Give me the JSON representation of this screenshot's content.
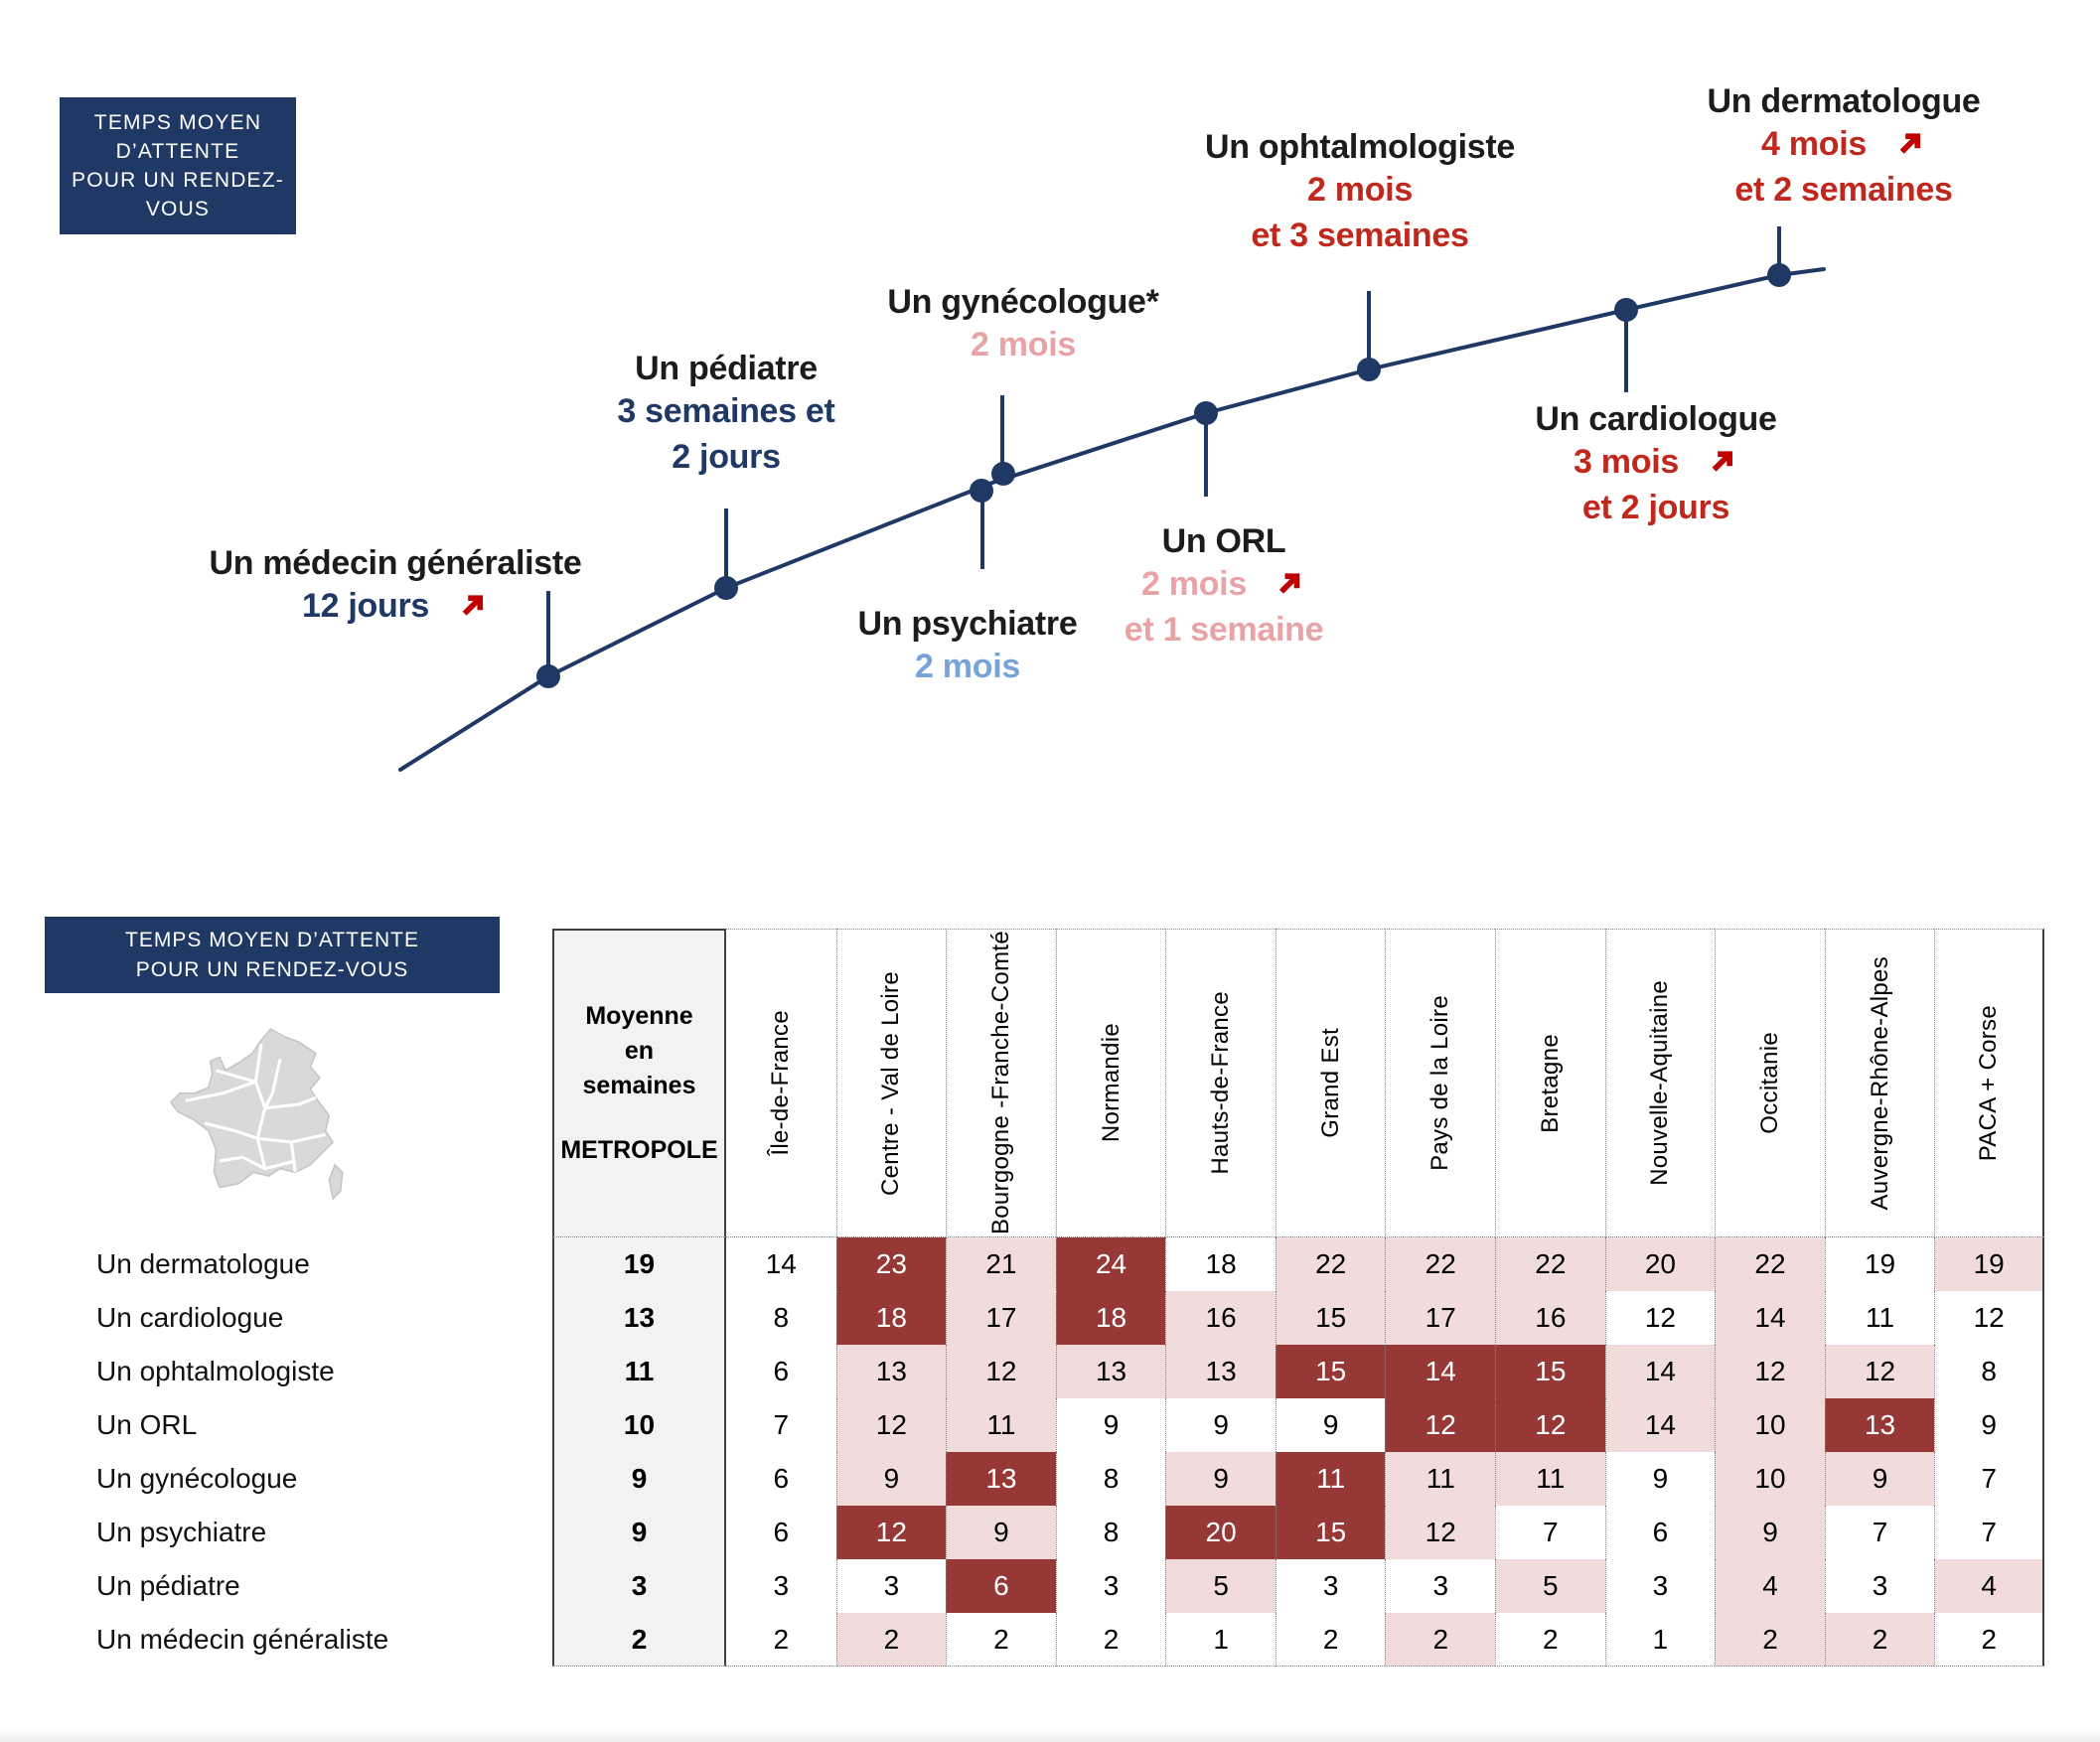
{
  "colors": {
    "navy": "#1f3864",
    "red_text": "#c0281e",
    "arrow_red": "#c00000",
    "pink_text": "#e8a3a6",
    "lightblue_text": "#76a3d8",
    "dark_cell": "#963836",
    "pink_cell": "#f2dcdb",
    "metropole_grey": "#f2f2f2",
    "map_grey": "#d9d9d9"
  },
  "chart_title_box": {
    "lines": [
      "TEMPS MOYEN",
      "D’ATTENTE",
      "POUR UN RENDEZ-",
      "VOUS"
    ]
  },
  "chart_data": [
    {
      "type": "line",
      "title": "TEMPS MOYEN D’ATTENTE POUR UN RENDEZ-VOUS",
      "legend_position": "none",
      "grid": false,
      "points": [
        {
          "label": "Un médecin généraliste",
          "value_lines": [
            "12 jours"
          ],
          "value_color_key": "navy",
          "trend_arrow": true,
          "arrow_after_line": 0,
          "weeks_metropole": 2
        },
        {
          "label": "Un pédiatre",
          "value_lines": [
            "3 semaines et",
            "2 jours"
          ],
          "value_color_key": "navy",
          "trend_arrow": false,
          "weeks_metropole": 3
        },
        {
          "label": "Un psychiatre",
          "value_lines": [
            "2 mois"
          ],
          "value_color_key": "lightblue",
          "trend_arrow": false,
          "weeks_metropole": 9
        },
        {
          "label": "Un gynécologue*",
          "value_lines": [
            "2 mois"
          ],
          "value_color_key": "pink",
          "trend_arrow": false,
          "weeks_metropole": 9
        },
        {
          "label": "Un ORL",
          "value_lines": [
            "2 mois",
            "et 1 semaine"
          ],
          "value_color_key": "pink",
          "trend_arrow": true,
          "arrow_after_line": 0,
          "weeks_metropole": 10
        },
        {
          "label": "Un ophtalmologiste",
          "value_lines": [
            "2 mois",
            "et 3 semaines"
          ],
          "value_color_key": "red",
          "trend_arrow": false,
          "weeks_metropole": 11
        },
        {
          "label": "Un cardiologue",
          "value_lines": [
            "3 mois",
            "et 2 jours"
          ],
          "value_color_key": "red",
          "trend_arrow": true,
          "arrow_after_line": 0,
          "weeks_metropole": 13
        },
        {
          "label": "Un dermatologue",
          "value_lines": [
            "4 mois",
            "et 2 semaines"
          ],
          "value_color_key": "red",
          "trend_arrow": true,
          "arrow_after_line": 0,
          "weeks_metropole": 19
        }
      ]
    },
    {
      "type": "table",
      "title_lines": [
        "TEMPS MOYEN D’ATTENTE",
        "POUR UN RENDEZ-VOUS"
      ],
      "metropole_header_lines": [
        "Moyenne",
        "en",
        "semaines"
      ],
      "metropole_header_caption": "METROPOLE",
      "region_headers": [
        "Île-de-France",
        "Centre - Val de Loire",
        "Bourgogne -Franche-Comté",
        "Normandie",
        "Hauts-de-France",
        "Grand Est",
        "Pays de la Loire",
        "Bretagne",
        "Nouvelle-Aquitaine",
        "Occitanie",
        "Auvergne-Rhône-Alpes",
        "PACA + Corse"
      ],
      "rows": [
        {
          "label": "Un dermatologue",
          "metropole": 19,
          "values": [
            14,
            23,
            21,
            24,
            18,
            22,
            22,
            22,
            20,
            22,
            19,
            19
          ],
          "styles": [
            "w",
            "d",
            "p",
            "d",
            "w",
            "p",
            "p",
            "p",
            "p",
            "p",
            "w",
            "p"
          ]
        },
        {
          "label": "Un cardiologue",
          "metropole": 13,
          "values": [
            8,
            18,
            17,
            18,
            16,
            15,
            17,
            16,
            12,
            14,
            11,
            12
          ],
          "styles": [
            "w",
            "d",
            "p",
            "d",
            "p",
            "p",
            "p",
            "p",
            "w",
            "p",
            "w",
            "w"
          ]
        },
        {
          "label": "Un ophtalmologiste",
          "metropole": 11,
          "values": [
            6,
            13,
            12,
            13,
            13,
            15,
            14,
            15,
            14,
            12,
            12,
            8
          ],
          "styles": [
            "w",
            "p",
            "p",
            "p",
            "p",
            "d",
            "d",
            "d",
            "p",
            "p",
            "p",
            "w"
          ]
        },
        {
          "label": "Un ORL",
          "metropole": 10,
          "values": [
            7,
            12,
            11,
            9,
            9,
            9,
            12,
            12,
            14,
            10,
            13,
            9
          ],
          "styles": [
            "w",
            "p",
            "p",
            "w",
            "w",
            "w",
            "d",
            "d",
            "p",
            "p",
            "d",
            "w"
          ]
        },
        {
          "label": "Un gynécologue",
          "metropole": 9,
          "values": [
            6,
            9,
            13,
            8,
            9,
            11,
            11,
            11,
            9,
            10,
            9,
            7
          ],
          "styles": [
            "w",
            "p",
            "d",
            "w",
            "p",
            "d",
            "p",
            "p",
            "w",
            "p",
            "p",
            "w"
          ]
        },
        {
          "label": "Un psychiatre",
          "metropole": 9,
          "values": [
            6,
            12,
            9,
            8,
            20,
            15,
            12,
            7,
            6,
            9,
            7,
            7
          ],
          "styles": [
            "w",
            "d",
            "p",
            "w",
            "d",
            "d",
            "p",
            "w",
            "w",
            "p",
            "w",
            "w"
          ]
        },
        {
          "label": "Un pédiatre",
          "metropole": 3,
          "values": [
            3,
            3,
            6,
            3,
            5,
            3,
            3,
            5,
            3,
            4,
            3,
            4
          ],
          "styles": [
            "w",
            "w",
            "d",
            "w",
            "p",
            "w",
            "w",
            "p",
            "w",
            "p",
            "w",
            "p"
          ]
        },
        {
          "label": "Un médecin généraliste",
          "metropole": 2,
          "values": [
            2,
            2,
            2,
            2,
            1,
            2,
            2,
            2,
            1,
            2,
            2,
            2
          ],
          "styles": [
            "w",
            "p",
            "w",
            "w",
            "w",
            "w",
            "p",
            "w",
            "w",
            "p",
            "p",
            "w"
          ]
        }
      ]
    }
  ]
}
